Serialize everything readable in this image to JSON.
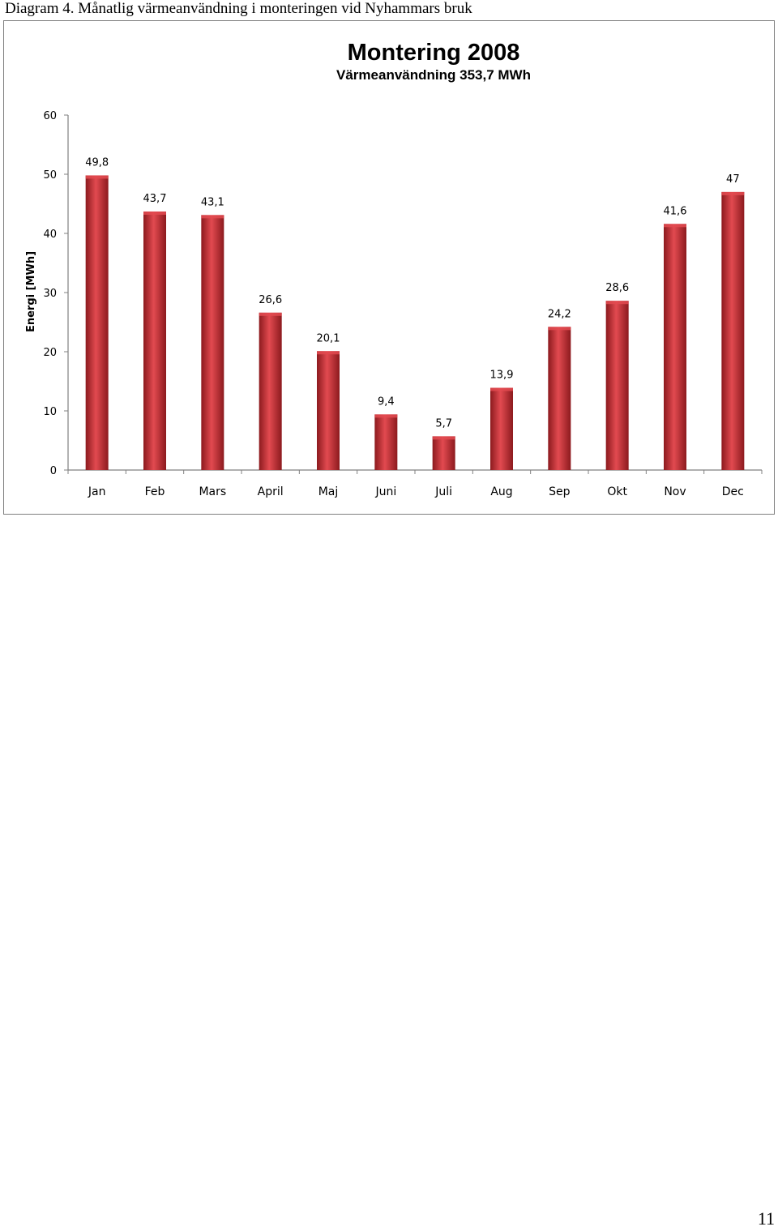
{
  "document": {
    "heading": "Diagram 4. Månatlig värmeanvändning i monteringen vid Nyhammars bruk",
    "page_number": "11"
  },
  "colors": {
    "bar": "#c0272d",
    "bar_dark": "#8c1a1e",
    "bar_light": "#e24a50",
    "axis": "#808080",
    "frame": "#7f7f7f"
  },
  "chart_data": {
    "type": "bar",
    "title": "Montering 2008",
    "subtitle": "Värmeanvändning 353,7 MWh",
    "xlabel": "",
    "ylabel": "Energi [MWh]",
    "ylim": [
      0,
      60
    ],
    "yticks": [
      "0",
      "10",
      "20",
      "30",
      "40",
      "50",
      "60"
    ],
    "grid": false,
    "categories": [
      "Jan",
      "Feb",
      "Mars",
      "April",
      "Maj",
      "Juni",
      "Juli",
      "Aug",
      "Sep",
      "Okt",
      "Nov",
      "Dec"
    ],
    "values": [
      49.8,
      43.7,
      43.1,
      26.6,
      20.1,
      9.4,
      5.7,
      13.9,
      24.2,
      28.6,
      41.6,
      47
    ],
    "data_labels": [
      "49,8",
      "43,7",
      "43,1",
      "26,6",
      "20,1",
      "9,4",
      "5,7",
      "13,9",
      "24,2",
      "28,6",
      "41,6",
      "47"
    ]
  }
}
